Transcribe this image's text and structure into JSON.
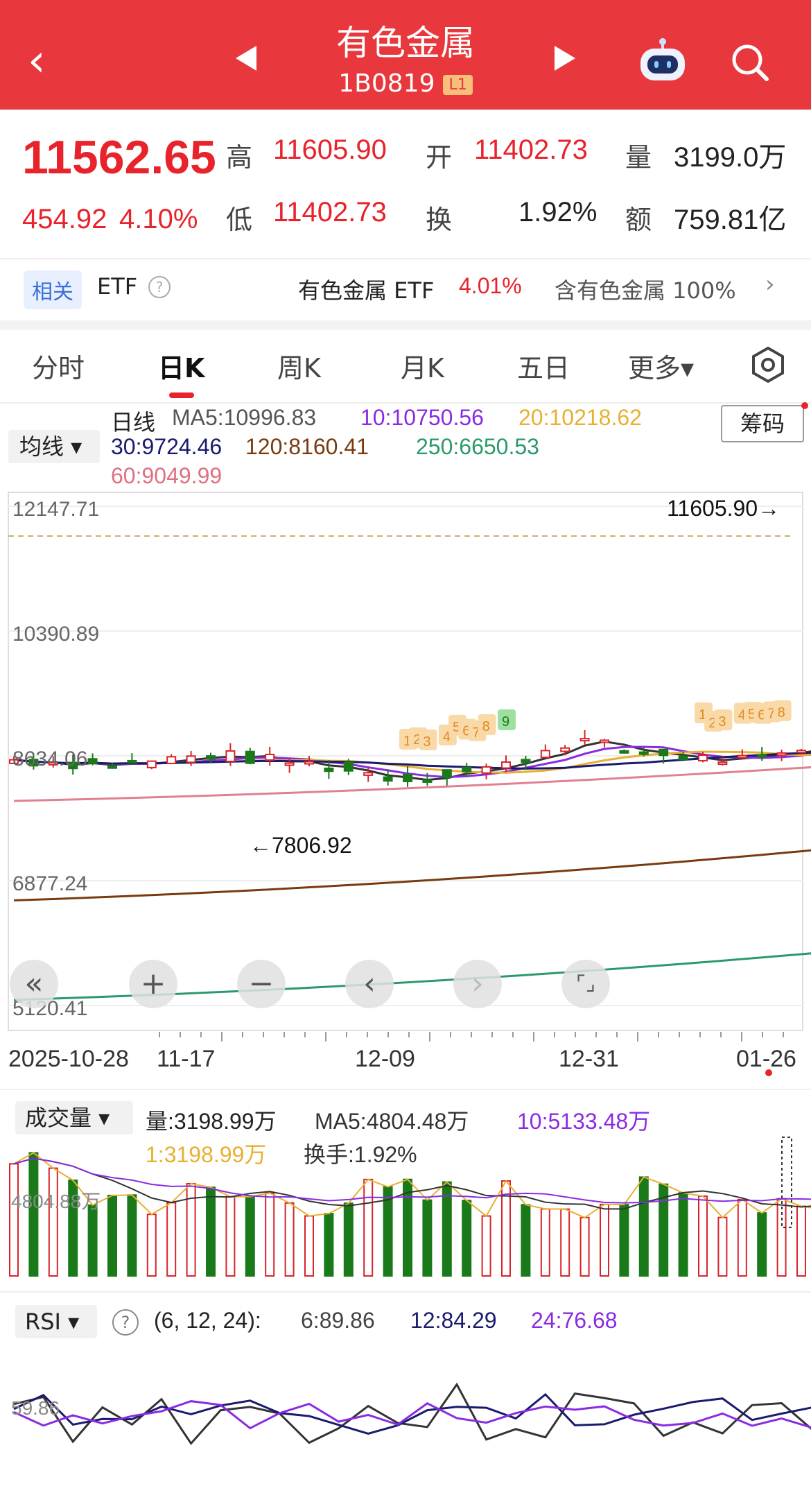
{
  "header": {
    "title": "有色金属",
    "code": "1B0819",
    "level": "L1",
    "back_icon": "back-arrow-icon",
    "prev_icon": "prev-triangle-icon",
    "next_icon": "next-triangle-icon",
    "assistant_icon": "robot-icon",
    "search_icon": "search-icon"
  },
  "quote": {
    "price": "11562.65",
    "change": "454.92",
    "change_pct": "4.10%",
    "high_label": "高",
    "high": "11605.90",
    "open_label": "开",
    "open": "11402.73",
    "volume_label": "量",
    "volume": "3199.0万",
    "low_label": "低",
    "low": "11402.73",
    "turnover_label": "换",
    "turnover": "1.92%",
    "amount_label": "额",
    "amount": "759.81亿"
  },
  "etf": {
    "tag": "相关",
    "label": "ETF",
    "help": "?",
    "name": "有色金属 ETF",
    "pct": "4.01%",
    "contain": "含有色金属 100%",
    "arrow": "›"
  },
  "tabs": [
    {
      "label": "分时"
    },
    {
      "label": "日K"
    },
    {
      "label": "周K"
    },
    {
      "label": "月K"
    },
    {
      "label": "五日"
    },
    {
      "label": "更多▾"
    }
  ],
  "ma": {
    "select": "均线 ▾",
    "period": "日线",
    "ma5": "MA5:10996.83",
    "ma10": "10:10750.56",
    "ma20": "20:10218.62",
    "ma30": "30:9724.46",
    "ma120": "120:8160.41",
    "ma250": "250:6650.53",
    "ma60": "60:9049.99",
    "chip": "筹码"
  },
  "kline": {
    "y_labels": [
      "12147.71",
      "10390.89",
      "8634.06",
      "6877.24",
      "5120.41"
    ],
    "max_label": "11605.90→",
    "min_label": "←7806.92",
    "dates": [
      "2025-10-28",
      "11-17",
      "12-09",
      "12-31",
      "01-26"
    ],
    "colors": {
      "up": "#d8232a",
      "down": "#1a7a1a",
      "ma5": "#333333",
      "ma10": "#8a2be2",
      "ma20": "#e8b030",
      "ma30": "#1a1a6e",
      "ma60": "#e08090",
      "ma120": "#7a3a10",
      "ma250": "#2a9a6a"
    }
  },
  "controls": {
    "rewind": "«",
    "zoom_in": "+",
    "zoom_out": "−",
    "left": "‹",
    "right": "›",
    "fullscreen": "⌜⌟"
  },
  "volume": {
    "select": "成交量 ▾",
    "vol": "量:3198.99万",
    "ma5": "MA5:4804.48万",
    "ma10": "10:5133.48万",
    "ma1": "1:3198.99万",
    "turnover": "换手:1.92%",
    "y_label": "4804.88万"
  },
  "rsi": {
    "select": "RSI ▾",
    "help": "?",
    "params": "(6, 12, 24):",
    "rsi6": "6:89.86",
    "rsi12": "12:84.29",
    "rsi24": "24:76.68",
    "y_label": "59.86"
  },
  "chart_data": [
    {
      "type": "candlestick",
      "title": "日线",
      "ylim": [
        5120.41,
        12147.71
      ],
      "y_ticks": [
        12147.71,
        10390.89,
        8634.06,
        6877.24,
        5120.41
      ],
      "x_ticks": [
        "2025-10-28",
        "11-17",
        "12-09",
        "12-31",
        "01-26"
      ],
      "high_marker": 11605.9,
      "low_marker": 7806.92,
      "last_close": 11562.65,
      "series": [
        {
          "name": "MA5",
          "last": 10996.83
        },
        {
          "name": "MA10",
          "last": 10750.56
        },
        {
          "name": "MA20",
          "last": 10218.62
        },
        {
          "name": "MA30",
          "last": 9724.46
        },
        {
          "name": "MA60",
          "last": 9049.99
        },
        {
          "name": "MA120",
          "last": 8160.41
        },
        {
          "name": "MA250",
          "last": 6650.53
        }
      ]
    },
    {
      "type": "bar",
      "title": "成交量",
      "last": 3198.99,
      "ma5": 4804.48,
      "ma10": 5133.48
    },
    {
      "type": "line",
      "title": "RSI",
      "series": [
        {
          "name": "6",
          "last": 89.86
        },
        {
          "name": "12",
          "last": 84.29
        },
        {
          "name": "24",
          "last": 76.68
        }
      ]
    }
  ]
}
